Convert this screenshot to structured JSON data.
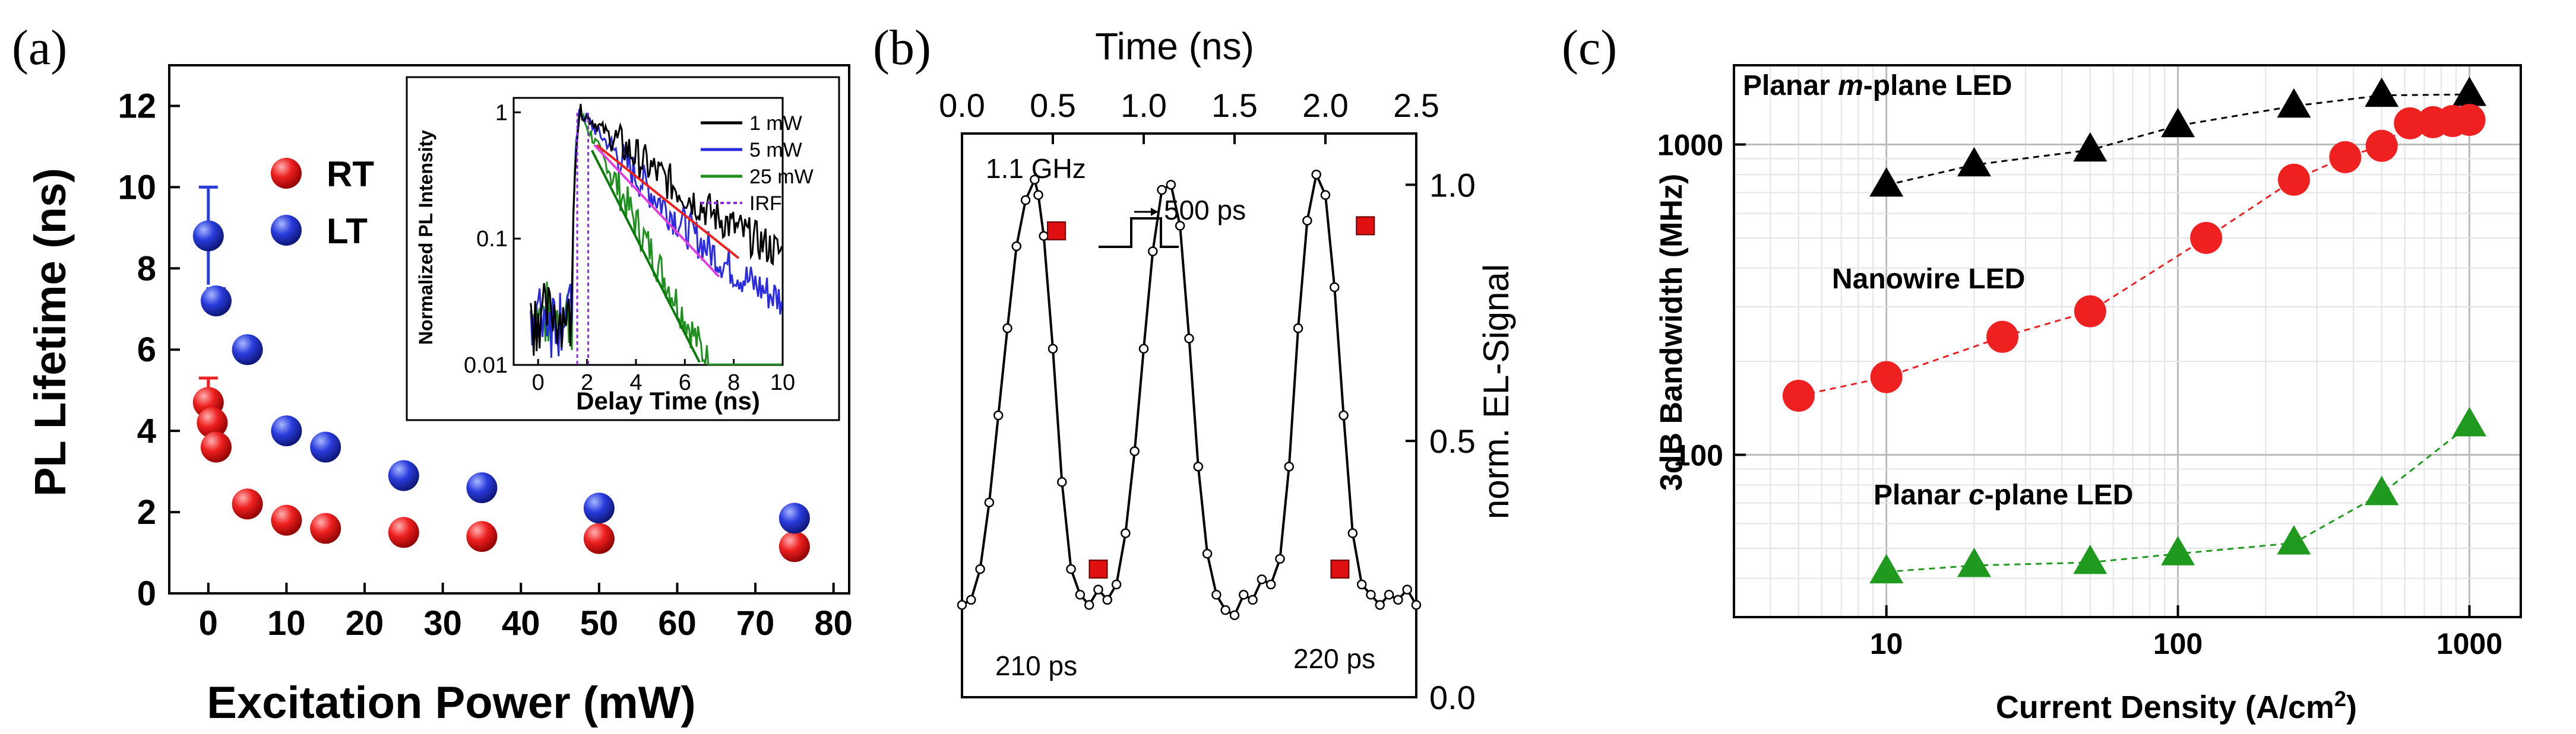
{
  "chart_data": [
    {
      "panel": "(a)",
      "type": "scatter",
      "xlabel": "Excitation Power (mW)",
      "ylabel": "PL Lifetime (ns)",
      "xlim": [
        -5,
        82
      ],
      "ylim": [
        0,
        13
      ],
      "xticks": [
        "0",
        "10",
        "20",
        "30",
        "40",
        "50",
        "60",
        "70",
        "80"
      ],
      "yticks": [
        "0",
        "2",
        "4",
        "6",
        "8",
        "10",
        "12"
      ],
      "series": [
        {
          "name": "RT",
          "color": "#ee2020",
          "x": [
            0,
            0.5,
            1,
            5,
            10,
            15,
            25,
            35,
            50,
            75
          ],
          "y": [
            4.7,
            4.2,
            3.6,
            2.2,
            1.8,
            1.6,
            1.5,
            1.4,
            1.35,
            1.15
          ],
          "err": [
            0.6,
            0,
            0,
            0,
            0,
            0,
            0,
            0,
            0,
            0
          ]
        },
        {
          "name": "LT",
          "color": "#2a3cdc",
          "x": [
            0,
            1,
            5,
            10,
            15,
            25,
            35,
            50,
            75
          ],
          "y": [
            8.8,
            7.2,
            6.0,
            4.0,
            3.6,
            2.9,
            2.6,
            2.1,
            1.85
          ],
          "err": [
            1.2,
            0.3,
            0,
            0,
            0,
            0,
            0,
            0,
            0
          ]
        }
      ],
      "inset": {
        "type": "line",
        "xlabel": "Delay Time (ns)",
        "ylabel": "Normalized PL Intensity",
        "xlim": [
          -1,
          10
        ],
        "ylim_log": [
          0.01,
          1.3
        ],
        "xticks": [
          "0",
          "2",
          "4",
          "6",
          "8",
          "10"
        ],
        "yticks": [
          "0.01",
          "0.1",
          "1"
        ],
        "series": [
          {
            "name": "1 mW",
            "color": "#000000"
          },
          {
            "name": "5 mW",
            "color": "#2a2ae0"
          },
          {
            "name": "25 mW",
            "color": "#1f8f1f"
          },
          {
            "name": "IRF",
            "color": "#8b2be2"
          }
        ]
      }
    },
    {
      "panel": "(b)",
      "type": "line",
      "xlabel_top": "Time (ns)",
      "ylabel_right": "norm. EL-Signal",
      "xlim": [
        0,
        2.5
      ],
      "ylim": [
        0,
        1.1
      ],
      "xticks": [
        "0.0",
        "0.5",
        "1.0",
        "1.5",
        "2.0",
        "2.5"
      ],
      "yticks": [
        "0.0",
        "0.5",
        "1.0"
      ],
      "x": [
        0.0,
        0.05,
        0.1,
        0.15,
        0.2,
        0.25,
        0.3,
        0.35,
        0.4,
        0.42,
        0.45,
        0.5,
        0.55,
        0.6,
        0.65,
        0.7,
        0.75,
        0.8,
        0.85,
        0.9,
        0.95,
        1.0,
        1.05,
        1.1,
        1.15,
        1.2,
        1.25,
        1.3,
        1.35,
        1.4,
        1.45,
        1.5,
        1.55,
        1.6,
        1.65,
        1.7,
        1.75,
        1.8,
        1.85,
        1.9,
        1.95,
        2.0,
        2.05,
        2.1,
        2.15,
        2.2,
        2.25,
        2.3,
        2.35,
        2.4,
        2.45,
        2.5
      ],
      "values": [
        0.18,
        0.19,
        0.25,
        0.38,
        0.55,
        0.72,
        0.88,
        0.97,
        1.01,
        0.98,
        0.9,
        0.68,
        0.42,
        0.25,
        0.2,
        0.18,
        0.21,
        0.19,
        0.22,
        0.32,
        0.48,
        0.68,
        0.87,
        0.99,
        1.0,
        0.92,
        0.7,
        0.45,
        0.28,
        0.2,
        0.17,
        0.16,
        0.2,
        0.19,
        0.23,
        0.22,
        0.27,
        0.45,
        0.72,
        0.93,
        1.02,
        0.98,
        0.8,
        0.55,
        0.32,
        0.22,
        0.2,
        0.18,
        0.2,
        0.19,
        0.21,
        0.18
      ],
      "highlight_points": [
        [
          0.52,
          0.91
        ],
        [
          0.75,
          0.25
        ],
        [
          2.08,
          0.25
        ],
        [
          2.22,
          0.92
        ]
      ],
      "annotations": [
        "1.1 GHz",
        "500 ps",
        "210 ps",
        "220 ps"
      ]
    },
    {
      "panel": "(c)",
      "type": "scatter",
      "xlabel": "Current Density (A/cm",
      "xlabel_sup": "2",
      "xlabel_end": ")",
      "ylabel": "3dB Bandwidth (MHz)",
      "xscale": "log",
      "yscale": "log",
      "xlim": [
        3,
        1500
      ],
      "ylim": [
        30,
        1800
      ],
      "xticks": [
        "10",
        "100",
        "1000"
      ],
      "yticks": [
        "100",
        "1000"
      ],
      "series": [
        {
          "name_prefix": "Planar ",
          "name_italic": "m",
          "name_suffix": "-plane LED",
          "marker": "triangle",
          "color": "#000000",
          "x": [
            10,
            20,
            50,
            100,
            250,
            500,
            1000
          ],
          "y": [
            740,
            860,
            960,
            1150,
            1330,
            1440,
            1450
          ]
        },
        {
          "name_prefix": "Nanowire LED",
          "name_italic": "",
          "name_suffix": "",
          "marker": "circle",
          "color": "#ee2020",
          "x": [
            5,
            10,
            25,
            50,
            125,
            250,
            375,
            500,
            625,
            750,
            875,
            1000
          ],
          "y": [
            155,
            178,
            240,
            290,
            500,
            770,
            910,
            990,
            1170,
            1180,
            1190,
            1200
          ]
        },
        {
          "name_prefix": "Planar ",
          "name_italic": "c",
          "name_suffix": "-plane LED",
          "marker": "triangle",
          "color": "#1f9a1f",
          "x": [
            10,
            20,
            50,
            100,
            250,
            500,
            1000
          ],
          "y": [
            42,
            44,
            45,
            48,
            52,
            75,
            125
          ]
        }
      ]
    }
  ]
}
